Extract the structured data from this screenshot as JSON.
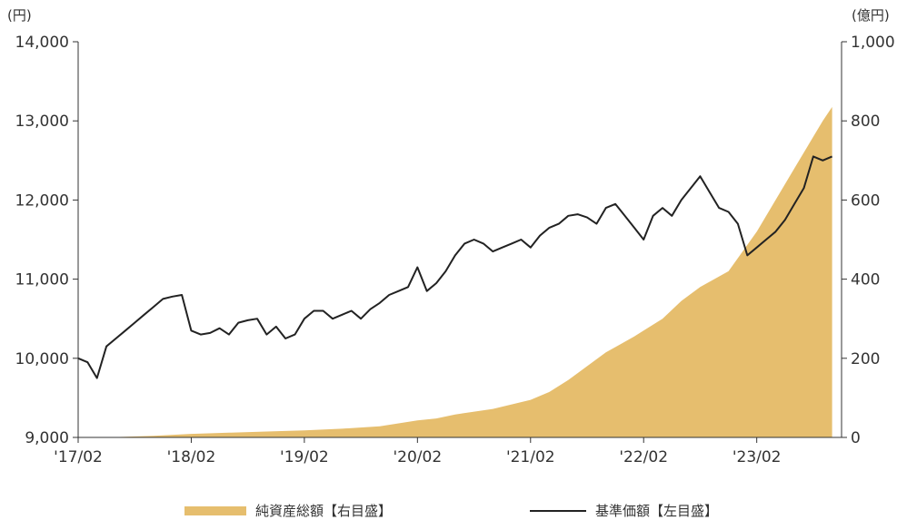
{
  "chart_data": {
    "type": "line-area",
    "left_unit": "(円)",
    "right_unit": "(億円)",
    "x_ticks": [
      "'17/02",
      "'18/02",
      "'19/02",
      "'20/02",
      "'21/02",
      "'22/02",
      "'23/02"
    ],
    "y_left": {
      "min": 9000,
      "max": 14000,
      "ticks": [
        "9,000",
        "10,000",
        "11,000",
        "12,000",
        "13,000",
        "14,000"
      ]
    },
    "y_right": {
      "min": 0,
      "max": 1000,
      "ticks": [
        "0",
        "200",
        "400",
        "600",
        "800",
        "1,000"
      ]
    },
    "series": [
      {
        "name": "純資産総額【右目盛】",
        "kind": "area",
        "axis": "right",
        "color": "#E6BE6E",
        "points": [
          [
            "2017-02",
            0
          ],
          [
            "2017-06",
            1
          ],
          [
            "2017-10",
            4
          ],
          [
            "2018-02",
            9
          ],
          [
            "2018-06",
            12
          ],
          [
            "2018-10",
            15
          ],
          [
            "2019-02",
            18
          ],
          [
            "2019-06",
            22
          ],
          [
            "2019-10",
            28
          ],
          [
            "2020-02",
            43
          ],
          [
            "2020-04",
            48
          ],
          [
            "2020-06",
            58
          ],
          [
            "2020-10",
            72
          ],
          [
            "2021-02",
            95
          ],
          [
            "2021-04",
            115
          ],
          [
            "2021-06",
            145
          ],
          [
            "2021-08",
            180
          ],
          [
            "2021-10",
            215
          ],
          [
            "2022-01",
            255
          ],
          [
            "2022-02",
            270
          ],
          [
            "2022-04",
            300
          ],
          [
            "2022-06",
            345
          ],
          [
            "2022-08",
            380
          ],
          [
            "2022-11",
            420
          ],
          [
            "2023-02",
            520
          ],
          [
            "2023-04",
            600
          ],
          [
            "2023-06",
            680
          ],
          [
            "2023-08",
            760
          ],
          [
            "2023-09",
            800
          ],
          [
            "2023-10",
            835
          ]
        ]
      },
      {
        "name": "基準価額【左目盛】",
        "kind": "line",
        "axis": "left",
        "color": "#222222",
        "points": [
          [
            "2017-02",
            10000
          ],
          [
            "2017-03",
            9950
          ],
          [
            "2017-04",
            9750
          ],
          [
            "2017-05",
            10150
          ],
          [
            "2017-06",
            10250
          ],
          [
            "2017-07",
            10350
          ],
          [
            "2017-08",
            10450
          ],
          [
            "2017-09",
            10550
          ],
          [
            "2017-10",
            10650
          ],
          [
            "2017-11",
            10750
          ],
          [
            "2017-12",
            10780
          ],
          [
            "2018-01",
            10800
          ],
          [
            "2018-02",
            10350
          ],
          [
            "2018-03",
            10300
          ],
          [
            "2018-04",
            10320
          ],
          [
            "2018-05",
            10380
          ],
          [
            "2018-06",
            10300
          ],
          [
            "2018-07",
            10450
          ],
          [
            "2018-08",
            10480
          ],
          [
            "2018-09",
            10500
          ],
          [
            "2018-10",
            10300
          ],
          [
            "2018-11",
            10400
          ],
          [
            "2018-12",
            10250
          ],
          [
            "2019-01",
            10300
          ],
          [
            "2019-02",
            10500
          ],
          [
            "2019-03",
            10600
          ],
          [
            "2019-04",
            10600
          ],
          [
            "2019-05",
            10500
          ],
          [
            "2019-06",
            10550
          ],
          [
            "2019-07",
            10600
          ],
          [
            "2019-08",
            10500
          ],
          [
            "2019-09",
            10620
          ],
          [
            "2019-10",
            10700
          ],
          [
            "2019-11",
            10800
          ],
          [
            "2019-12",
            10850
          ],
          [
            "2020-01",
            10900
          ],
          [
            "2020-02",
            11150
          ],
          [
            "2020-03",
            10850
          ],
          [
            "2020-04",
            10950
          ],
          [
            "2020-05",
            11100
          ],
          [
            "2020-06",
            11300
          ],
          [
            "2020-07",
            11450
          ],
          [
            "2020-08",
            11500
          ],
          [
            "2020-09",
            11450
          ],
          [
            "2020-10",
            11350
          ],
          [
            "2020-11",
            11400
          ],
          [
            "2020-12",
            11450
          ],
          [
            "2021-01",
            11500
          ],
          [
            "2021-02",
            11400
          ],
          [
            "2021-03",
            11550
          ],
          [
            "2021-04",
            11650
          ],
          [
            "2021-05",
            11700
          ],
          [
            "2021-06",
            11800
          ],
          [
            "2021-07",
            11820
          ],
          [
            "2021-08",
            11780
          ],
          [
            "2021-09",
            11700
          ],
          [
            "2021-10",
            11900
          ],
          [
            "2021-11",
            11950
          ],
          [
            "2021-12",
            11800
          ],
          [
            "2022-01",
            11650
          ],
          [
            "2022-02",
            11500
          ],
          [
            "2022-03",
            11800
          ],
          [
            "2022-04",
            11900
          ],
          [
            "2022-05",
            11800
          ],
          [
            "2022-06",
            12000
          ],
          [
            "2022-07",
            12150
          ],
          [
            "2022-08",
            12300
          ],
          [
            "2022-09",
            12100
          ],
          [
            "2022-10",
            11900
          ],
          [
            "2022-11",
            11850
          ],
          [
            "2022-12",
            11700
          ],
          [
            "2023-01",
            11300
          ],
          [
            "2023-02",
            11400
          ],
          [
            "2023-03",
            11500
          ],
          [
            "2023-04",
            11600
          ],
          [
            "2023-05",
            11750
          ],
          [
            "2023-06",
            11950
          ],
          [
            "2023-07",
            12150
          ],
          [
            "2023-08",
            12550
          ],
          [
            "2023-09",
            12500
          ],
          [
            "2023-10",
            12550
          ]
        ]
      }
    ],
    "legend_position": "bottom"
  }
}
